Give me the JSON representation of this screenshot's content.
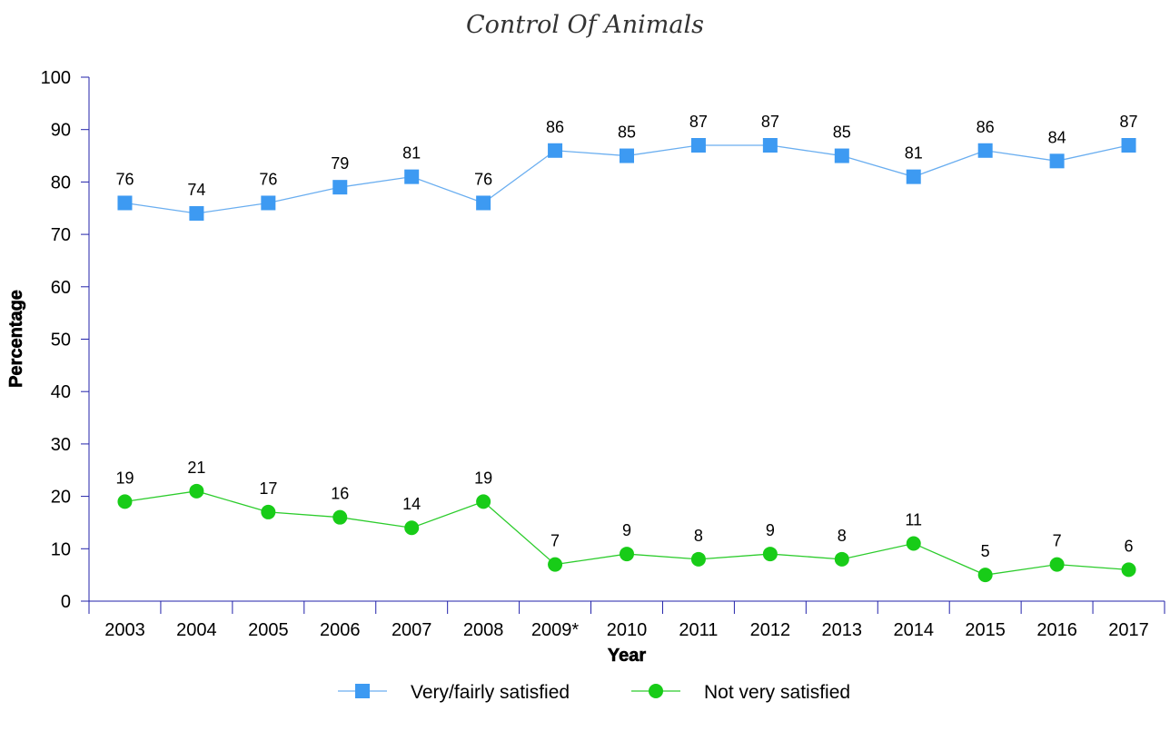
{
  "chart_data": {
    "type": "line",
    "title": "Control Of Animals",
    "xlabel": "Year",
    "ylabel": "Percentage",
    "ylim": [
      0,
      100
    ],
    "yticks": [
      0,
      10,
      20,
      30,
      40,
      50,
      60,
      70,
      80,
      90,
      100
    ],
    "categories": [
      "2003",
      "2004",
      "2005",
      "2006",
      "2007",
      "2008",
      "2009*",
      "2010",
      "2011",
      "2012",
      "2013",
      "2014",
      "2015",
      "2016",
      "2017"
    ],
    "series": [
      {
        "name": "Very/fairly satisfied",
        "marker": "square",
        "color": "#3d9af2",
        "line_color": "#6aaef0",
        "values": [
          76,
          74,
          76,
          79,
          81,
          76,
          86,
          85,
          87,
          87,
          85,
          81,
          86,
          84,
          87
        ]
      },
      {
        "name": "Not very satisfied",
        "marker": "circle",
        "color": "#18cc18",
        "line_color": "#2ccc2c",
        "values": [
          19,
          21,
          17,
          16,
          14,
          19,
          7,
          9,
          8,
          9,
          8,
          11,
          5,
          7,
          6
        ]
      }
    ],
    "grid": false,
    "legend_position": "bottom-center",
    "axis_color": "#2222aa"
  }
}
